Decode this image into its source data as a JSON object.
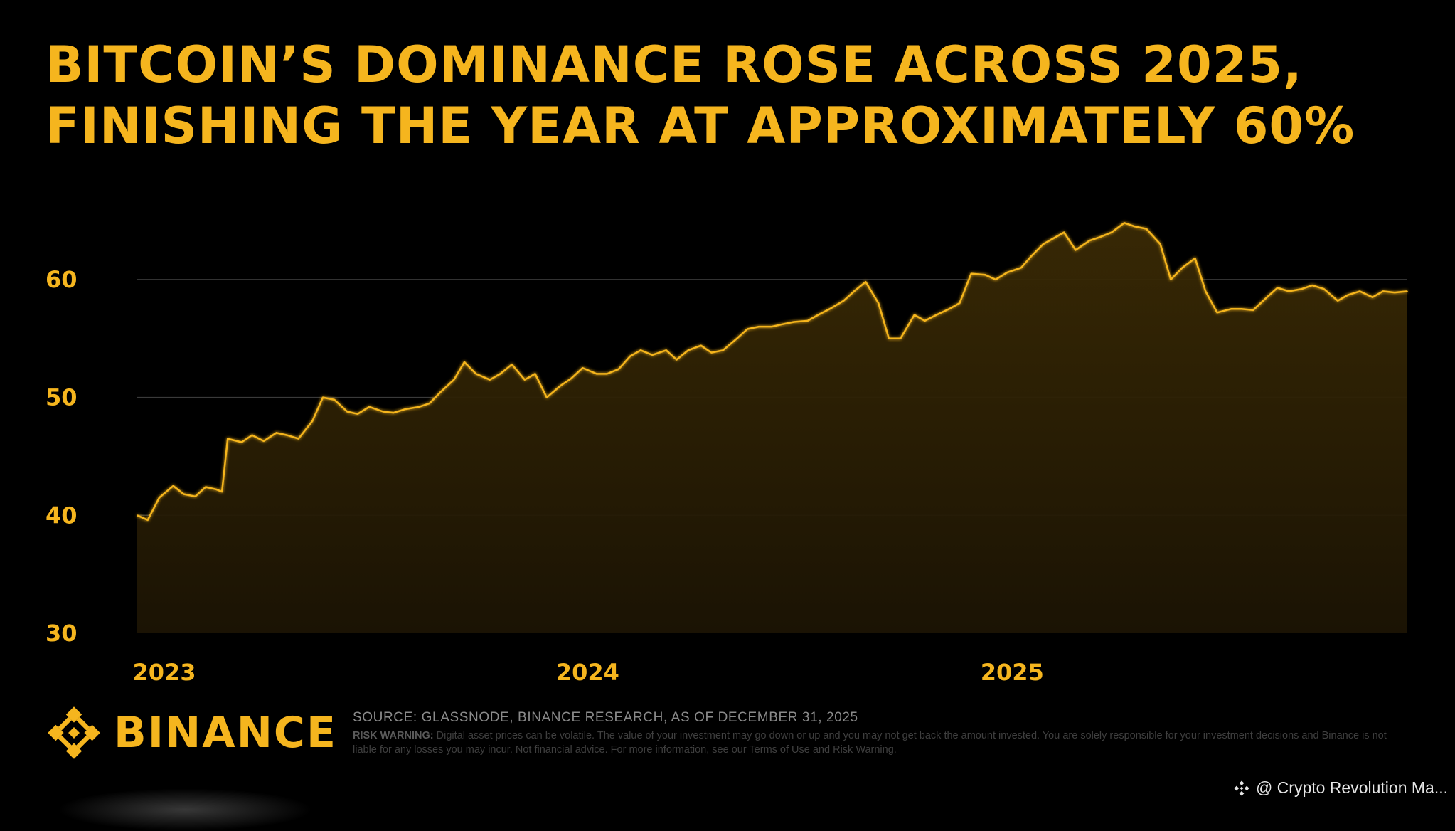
{
  "title": {
    "line1": "BITCOIN’S DOMINANCE ROSE ACROSS 2025,",
    "line2": "FINISHING THE YEAR AT APPROXIMATELY 60%"
  },
  "chart_data": {
    "type": "area",
    "ylim": [
      30,
      65
    ],
    "y_ticks": [
      30,
      40,
      50,
      60
    ],
    "x_ticks": [
      {
        "label": "2023",
        "x": "2023-01-01"
      },
      {
        "label": "2024",
        "x": "2024-01-01"
      },
      {
        "label": "2025",
        "x": "2025-01-01"
      }
    ],
    "x_range": [
      "2023-01-01",
      "2025-12-31"
    ],
    "grid": "horizontal",
    "line_color": "#F5B51E",
    "series": [
      {
        "x": [
          "2023-01-01",
          "2023-01-10",
          "2023-01-20",
          "2023-02-01",
          "2023-02-10",
          "2023-02-20",
          "2023-03-01",
          "2023-03-10",
          "2023-03-15",
          "2023-03-20",
          "2023-04-01",
          "2023-04-10",
          "2023-04-20",
          "2023-05-01",
          "2023-05-10",
          "2023-05-20",
          "2023-06-01",
          "2023-06-10",
          "2023-06-20",
          "2023-07-01",
          "2023-07-10",
          "2023-07-20",
          "2023-08-01",
          "2023-08-10",
          "2023-08-20",
          "2023-09-01",
          "2023-09-10",
          "2023-09-20",
          "2023-10-01",
          "2023-10-10",
          "2023-10-20",
          "2023-11-01",
          "2023-11-10",
          "2023-11-20",
          "2023-12-01",
          "2023-12-10",
          "2023-12-20",
          "2024-01-01",
          "2024-01-10",
          "2024-01-20",
          "2024-02-01",
          "2024-02-10",
          "2024-02-20",
          "2024-03-01",
          "2024-03-10",
          "2024-03-20",
          "2024-04-01",
          "2024-04-10",
          "2024-04-20",
          "2024-05-01",
          "2024-05-10",
          "2024-05-20",
          "2024-06-01",
          "2024-06-10",
          "2024-06-20",
          "2024-07-01",
          "2024-07-10",
          "2024-07-20",
          "2024-08-01",
          "2024-08-10",
          "2024-08-20",
          "2024-09-01",
          "2024-09-10",
          "2024-09-20",
          "2024-10-01",
          "2024-10-10",
          "2024-10-20",
          "2024-11-01",
          "2024-11-10",
          "2024-11-20",
          "2024-12-01",
          "2024-12-10",
          "2024-12-20",
          "2025-01-01",
          "2025-01-10",
          "2025-01-20",
          "2025-02-01",
          "2025-02-10",
          "2025-02-20",
          "2025-03-01",
          "2025-03-10",
          "2025-03-20",
          "2025-04-01",
          "2025-04-10",
          "2025-04-20",
          "2025-05-01",
          "2025-05-10",
          "2025-05-20",
          "2025-06-01",
          "2025-06-10",
          "2025-06-20",
          "2025-07-01",
          "2025-07-10",
          "2025-07-20",
          "2025-08-01",
          "2025-08-10",
          "2025-08-20",
          "2025-09-01",
          "2025-09-10",
          "2025-09-20",
          "2025-10-01",
          "2025-10-10",
          "2025-10-20",
          "2025-11-01",
          "2025-11-10",
          "2025-11-20",
          "2025-12-01",
          "2025-12-10",
          "2025-12-20",
          "2025-12-31"
        ],
        "values": [
          40.0,
          39.6,
          41.5,
          42.5,
          41.8,
          41.6,
          42.4,
          42.2,
          42.0,
          46.5,
          46.2,
          46.8,
          46.3,
          47.0,
          46.8,
          46.5,
          48.0,
          50.0,
          49.8,
          48.8,
          48.6,
          49.2,
          48.8,
          48.7,
          49.0,
          49.2,
          49.5,
          50.5,
          51.5,
          53.0,
          52.0,
          51.5,
          52.0,
          52.8,
          51.5,
          52.0,
          50.0,
          51.0,
          51.6,
          52.5,
          52.0,
          52.0,
          52.4,
          53.5,
          54.0,
          53.6,
          54.0,
          53.2,
          54.0,
          54.4,
          53.8,
          54.0,
          55.0,
          55.8,
          56.0,
          56.0,
          56.2,
          56.4,
          56.5,
          57.0,
          57.5,
          58.2,
          59.0,
          59.8,
          58.0,
          55.0,
          55.0,
          57.0,
          56.5,
          57.0,
          57.5,
          58.0,
          60.5,
          60.4,
          60.0,
          60.6,
          61.0,
          62.0,
          63.0,
          63.5,
          64.0,
          62.5,
          63.3,
          63.6,
          64.0,
          64.8,
          64.5,
          64.3,
          63.0,
          60.0,
          61.0,
          61.8,
          59.0,
          57.2,
          57.5,
          57.5,
          57.4,
          58.5,
          59.3,
          59.0,
          59.2,
          59.5,
          59.2,
          58.2,
          58.7,
          59.0,
          58.5,
          59.0,
          58.9,
          59.0
        ]
      }
    ]
  },
  "source": {
    "text": "SOURCE: GLASSNODE, BINANCE RESEARCH, AS OF DECEMBER 31, 2025",
    "risk_label": "RISK WARNING:",
    "risk_text": " Digital asset prices can be volatile. The value of your investment may go down or up and you may not get back the amount invested. You are solely responsible for your investment decisions and Binance is not liable for any losses you may incur. Not financial advice. For more information, see our Terms of Use and Risk Warning."
  },
  "logo": {
    "text": "BINANCE",
    "icon": "binance-diamond-icon"
  },
  "watermark": {
    "text": "@ Crypto Revolution Ma...",
    "icon": "binance-small-icon"
  }
}
